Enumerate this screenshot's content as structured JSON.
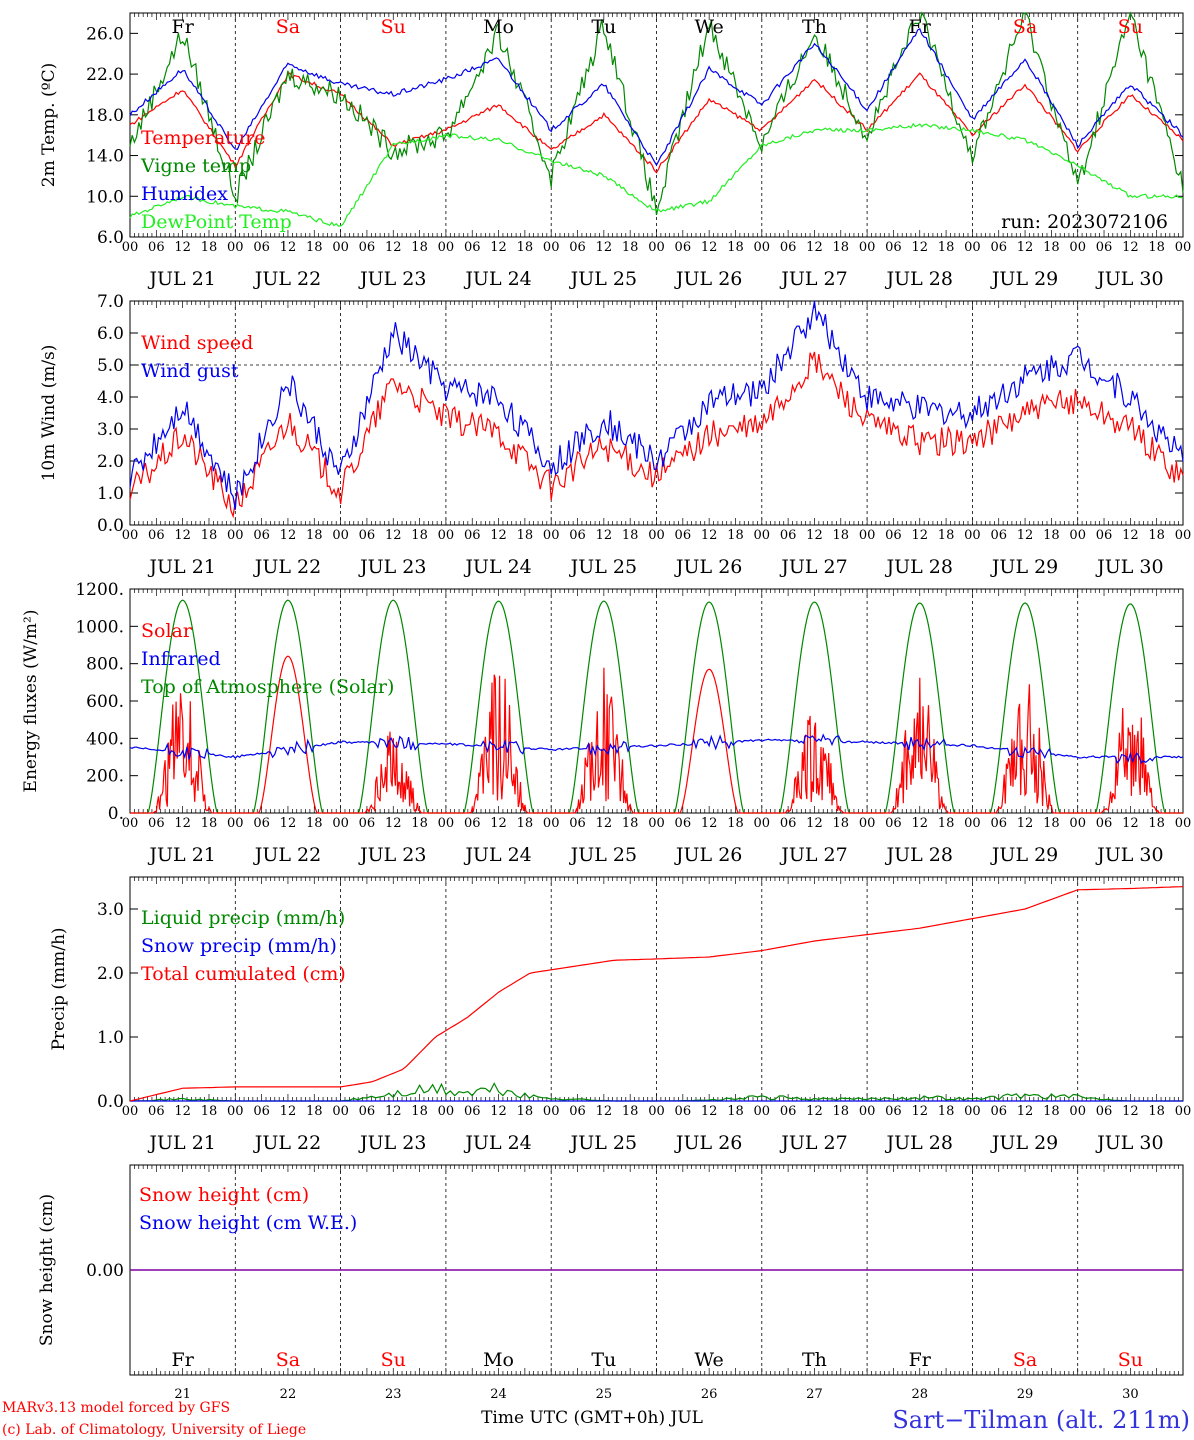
{
  "footer": {
    "credit_line1": "MARv3.13 model forced by GFS",
    "credit_line2": "(c) Lab. of Climatology, University of Liege",
    "xlabel": "Time UTC (GMT+0h) JUL",
    "station": "Sart−Tilman (alt. 211m)"
  },
  "colors": {
    "red": "#ff0000",
    "green": "#008800",
    "blue": "#0000ee",
    "lime": "#22ee22",
    "purple": "#8000a0"
  },
  "time_axis": {
    "hour_labels": [
      "00",
      "06",
      "12",
      "18"
    ],
    "end_label": "00",
    "date_labels": [
      "JUL 21",
      "JUL 22",
      "JUL 23",
      "JUL 24",
      "JUL 25",
      "JUL 26",
      "JUL 27",
      "JUL 28",
      "JUL 29",
      "JUL 30"
    ],
    "day_numbers": [
      "21",
      "22",
      "23",
      "24",
      "25",
      "26",
      "27",
      "28",
      "29",
      "30"
    ],
    "weekdays": [
      "Fr",
      "Sa",
      "Su",
      "Mo",
      "Tu",
      "We",
      "Th",
      "Fr",
      "Sa",
      "Su"
    ],
    "weekend": [
      false,
      true,
      true,
      false,
      false,
      false,
      false,
      false,
      true,
      true
    ]
  },
  "chart_data": [
    {
      "type": "line",
      "ylabel": "2m Temp. (ºC)",
      "ylim": [
        6,
        28
      ],
      "yticks": [
        6,
        10,
        14,
        18,
        22,
        26
      ],
      "ytick_labels": [
        "6.0",
        "10.0",
        "14.0",
        "18.0",
        "22.0",
        "26.0"
      ],
      "annotation": "run: 2023072106",
      "x_days": [
        0,
        0.5,
        1,
        1.5,
        2,
        2.5,
        3,
        3.5,
        4,
        4.5,
        5,
        5.5,
        6,
        6.5,
        7,
        7.5,
        8,
        8.5,
        9,
        9.5,
        10
      ],
      "series": [
        {
          "name": "Temperature",
          "color": "#ff0000",
          "values": [
            17,
            20.5,
            13,
            22,
            20,
            15,
            16.5,
            19,
            14.5,
            18,
            12.5,
            19.5,
            16.5,
            21.5,
            16.5,
            22,
            16,
            21,
            14.5,
            20,
            15.5
          ]
        },
        {
          "name": "Vigne temp",
          "color": "#008800",
          "values": [
            15,
            26,
            10,
            22,
            20,
            14.5,
            16,
            26,
            12,
            27,
            8.5,
            27,
            15,
            26,
            16,
            28,
            14,
            28,
            11,
            28,
            11
          ]
        },
        {
          "name": "Humidex",
          "color": "#0000ee",
          "values": [
            18,
            22.5,
            14.5,
            23,
            21,
            20,
            21.5,
            23.5,
            16.5,
            21,
            13,
            22.5,
            19,
            25,
            18.5,
            26.5,
            17.5,
            23.5,
            15,
            21,
            16
          ]
        },
        {
          "name": "DewPoint Temp",
          "color": "#22ee22",
          "values": [
            8,
            10,
            9,
            8.5,
            7,
            15,
            16,
            15.5,
            13.5,
            12,
            8.5,
            9.5,
            15,
            16.5,
            16.5,
            17,
            16.5,
            15.5,
            13,
            10,
            10
          ]
        }
      ]
    },
    {
      "type": "line",
      "ylabel": "10m Wind (m/s)",
      "ylim": [
        0,
        7
      ],
      "yticks": [
        0,
        1,
        2,
        3,
        4,
        5,
        6,
        7
      ],
      "ytick_labels": [
        "0.0",
        "1.0",
        "2.0",
        "3.0",
        "4.0",
        "5.0",
        "6.0",
        "7.0"
      ],
      "x_days": [
        0,
        0.5,
        1,
        1.5,
        2,
        2.5,
        3,
        3.5,
        4,
        4.5,
        5,
        5.5,
        6,
        6.5,
        7,
        7.5,
        8,
        8.5,
        9,
        9.5,
        10
      ],
      "series": [
        {
          "name": "Wind speed",
          "color": "#ff0000",
          "values": [
            1,
            2.8,
            0.5,
            3.3,
            1,
            4.5,
            3.3,
            2.9,
            1.2,
            2.5,
            1.5,
            2.8,
            3.1,
            5.1,
            3.2,
            2.6,
            2.6,
            3.5,
            3.9,
            3,
            1.5
          ]
        },
        {
          "name": "Wind gust",
          "color": "#0000ee",
          "values": [
            1.5,
            3.8,
            0.8,
            4.5,
            1.5,
            6,
            4.3,
            4,
            1.8,
            3.3,
            2,
            3.8,
            4.2,
            6.7,
            4,
            3.6,
            3.5,
            4.6,
            5.3,
            4,
            2
          ]
        }
      ]
    },
    {
      "type": "line",
      "ylabel": "Energy fluxes (W/m²)",
      "ylim": [
        0,
        1200
      ],
      "yticks": [
        0,
        200,
        400,
        600,
        800,
        1000,
        1200
      ],
      "ytick_labels": [
        "0.",
        "200.",
        "400.",
        "600.",
        "800.",
        "1000.",
        "1200."
      ],
      "series": [
        {
          "name": "Solar",
          "color": "#ff0000",
          "daily_peak": [
            750,
            840,
            480,
            800,
            820,
            770,
            560,
            780,
            820,
            700
          ]
        },
        {
          "name": "Infrared",
          "color": "#0000ee",
          "baseline": [
            350,
            300,
            380,
            370,
            340,
            360,
            390,
            380,
            360,
            300
          ]
        },
        {
          "name": "Top of Atmosphere (Solar)",
          "color": "#008800",
          "daily_peak": [
            1140,
            1140,
            1140,
            1135,
            1135,
            1130,
            1130,
            1125,
            1125,
            1120
          ]
        }
      ]
    },
    {
      "type": "line",
      "ylabel": "Precip (mm/h)",
      "ylim": [
        0,
        3.5
      ],
      "yticks": [
        0,
        1,
        2,
        3
      ],
      "ytick_labels": [
        "0.0",
        "1.0",
        "2.0",
        "3.0"
      ],
      "x_days": [
        0,
        0.5,
        1,
        1.5,
        2,
        2.3,
        2.6,
        2.9,
        3.2,
        3.5,
        3.8,
        4.2,
        4.6,
        5,
        5.5,
        6,
        6.5,
        7,
        7.5,
        8,
        8.5,
        9,
        9.5,
        10
      ],
      "series": [
        {
          "name": "Liquid precip (mm/h)",
          "color": "#008800",
          "values": [
            0,
            0.05,
            0,
            0,
            0,
            0.1,
            0.2,
            0.3,
            0.2,
            0.3,
            0.1,
            0.05,
            0,
            0,
            0.02,
            0.1,
            0.05,
            0.05,
            0.1,
            0.05,
            0.15,
            0.1,
            0,
            0
          ]
        },
        {
          "name": "Snow precip (mm/h)",
          "color": "#0000ee",
          "values": [
            0,
            0,
            0,
            0,
            0,
            0,
            0,
            0,
            0,
            0,
            0,
            0,
            0,
            0,
            0,
            0,
            0,
            0,
            0,
            0,
            0,
            0,
            0,
            0
          ]
        },
        {
          "name": "Total cumulated (cm)",
          "color": "#ff0000",
          "values": [
            0,
            0.2,
            0.22,
            0.22,
            0.22,
            0.3,
            0.5,
            1.0,
            1.3,
            1.7,
            2.0,
            2.1,
            2.2,
            2.22,
            2.25,
            2.35,
            2.5,
            2.6,
            2.7,
            2.85,
            3.0,
            3.3,
            3.32,
            3.35
          ]
        }
      ]
    },
    {
      "type": "line",
      "ylabel": "Snow height (cm)",
      "ytick_labels": [
        "0.00"
      ],
      "series": [
        {
          "name": "Snow height (cm)",
          "color": "#ff0000",
          "values": [
            0,
            0
          ]
        },
        {
          "name": "Snow height (cm W.E.)",
          "color": "#0000ee",
          "values": [
            0,
            0
          ]
        }
      ]
    }
  ]
}
